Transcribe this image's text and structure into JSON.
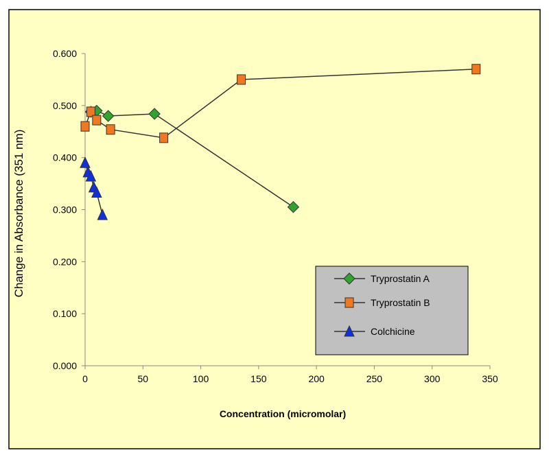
{
  "chart_data": {
    "type": "scatter",
    "title": "",
    "xlabel": "Concentration (micromolar)",
    "ylabel": "Change in Absorbance (351 nm)",
    "xlim": [
      0,
      350
    ],
    "ylim": [
      0,
      0.6
    ],
    "x_ticks": [
      "0",
      "50",
      "100",
      "150",
      "200",
      "250",
      "300",
      "350"
    ],
    "y_ticks": [
      "0.000",
      "0.100",
      "0.200",
      "0.300",
      "0.400",
      "0.500",
      "0.600"
    ],
    "grid": false,
    "legend_position": "bottom-right",
    "series": [
      {
        "name": "Tryprostatin A",
        "marker": "diamond",
        "color": "#2fa52f",
        "x": [
          5,
          10,
          20,
          60,
          180
        ],
        "y": [
          0.488,
          0.49,
          0.48,
          0.484,
          0.305
        ]
      },
      {
        "name": "Tryprostatin B",
        "marker": "square",
        "color": "#f07820",
        "x": [
          0,
          5,
          10,
          22,
          68,
          135,
          338
        ],
        "y": [
          0.46,
          0.488,
          0.472,
          0.454,
          0.438,
          0.55,
          0.57
        ]
      },
      {
        "name": "Colchicine",
        "marker": "triangle",
        "color": "#1030e0",
        "x": [
          0,
          2.5,
          5,
          7.5,
          10,
          15
        ],
        "y": [
          0.39,
          0.372,
          0.364,
          0.343,
          0.333,
          0.29
        ]
      }
    ]
  },
  "colors": {
    "plot_background": "#ffffc4",
    "legend_background": "#c0c0c0",
    "line": "#333333"
  }
}
